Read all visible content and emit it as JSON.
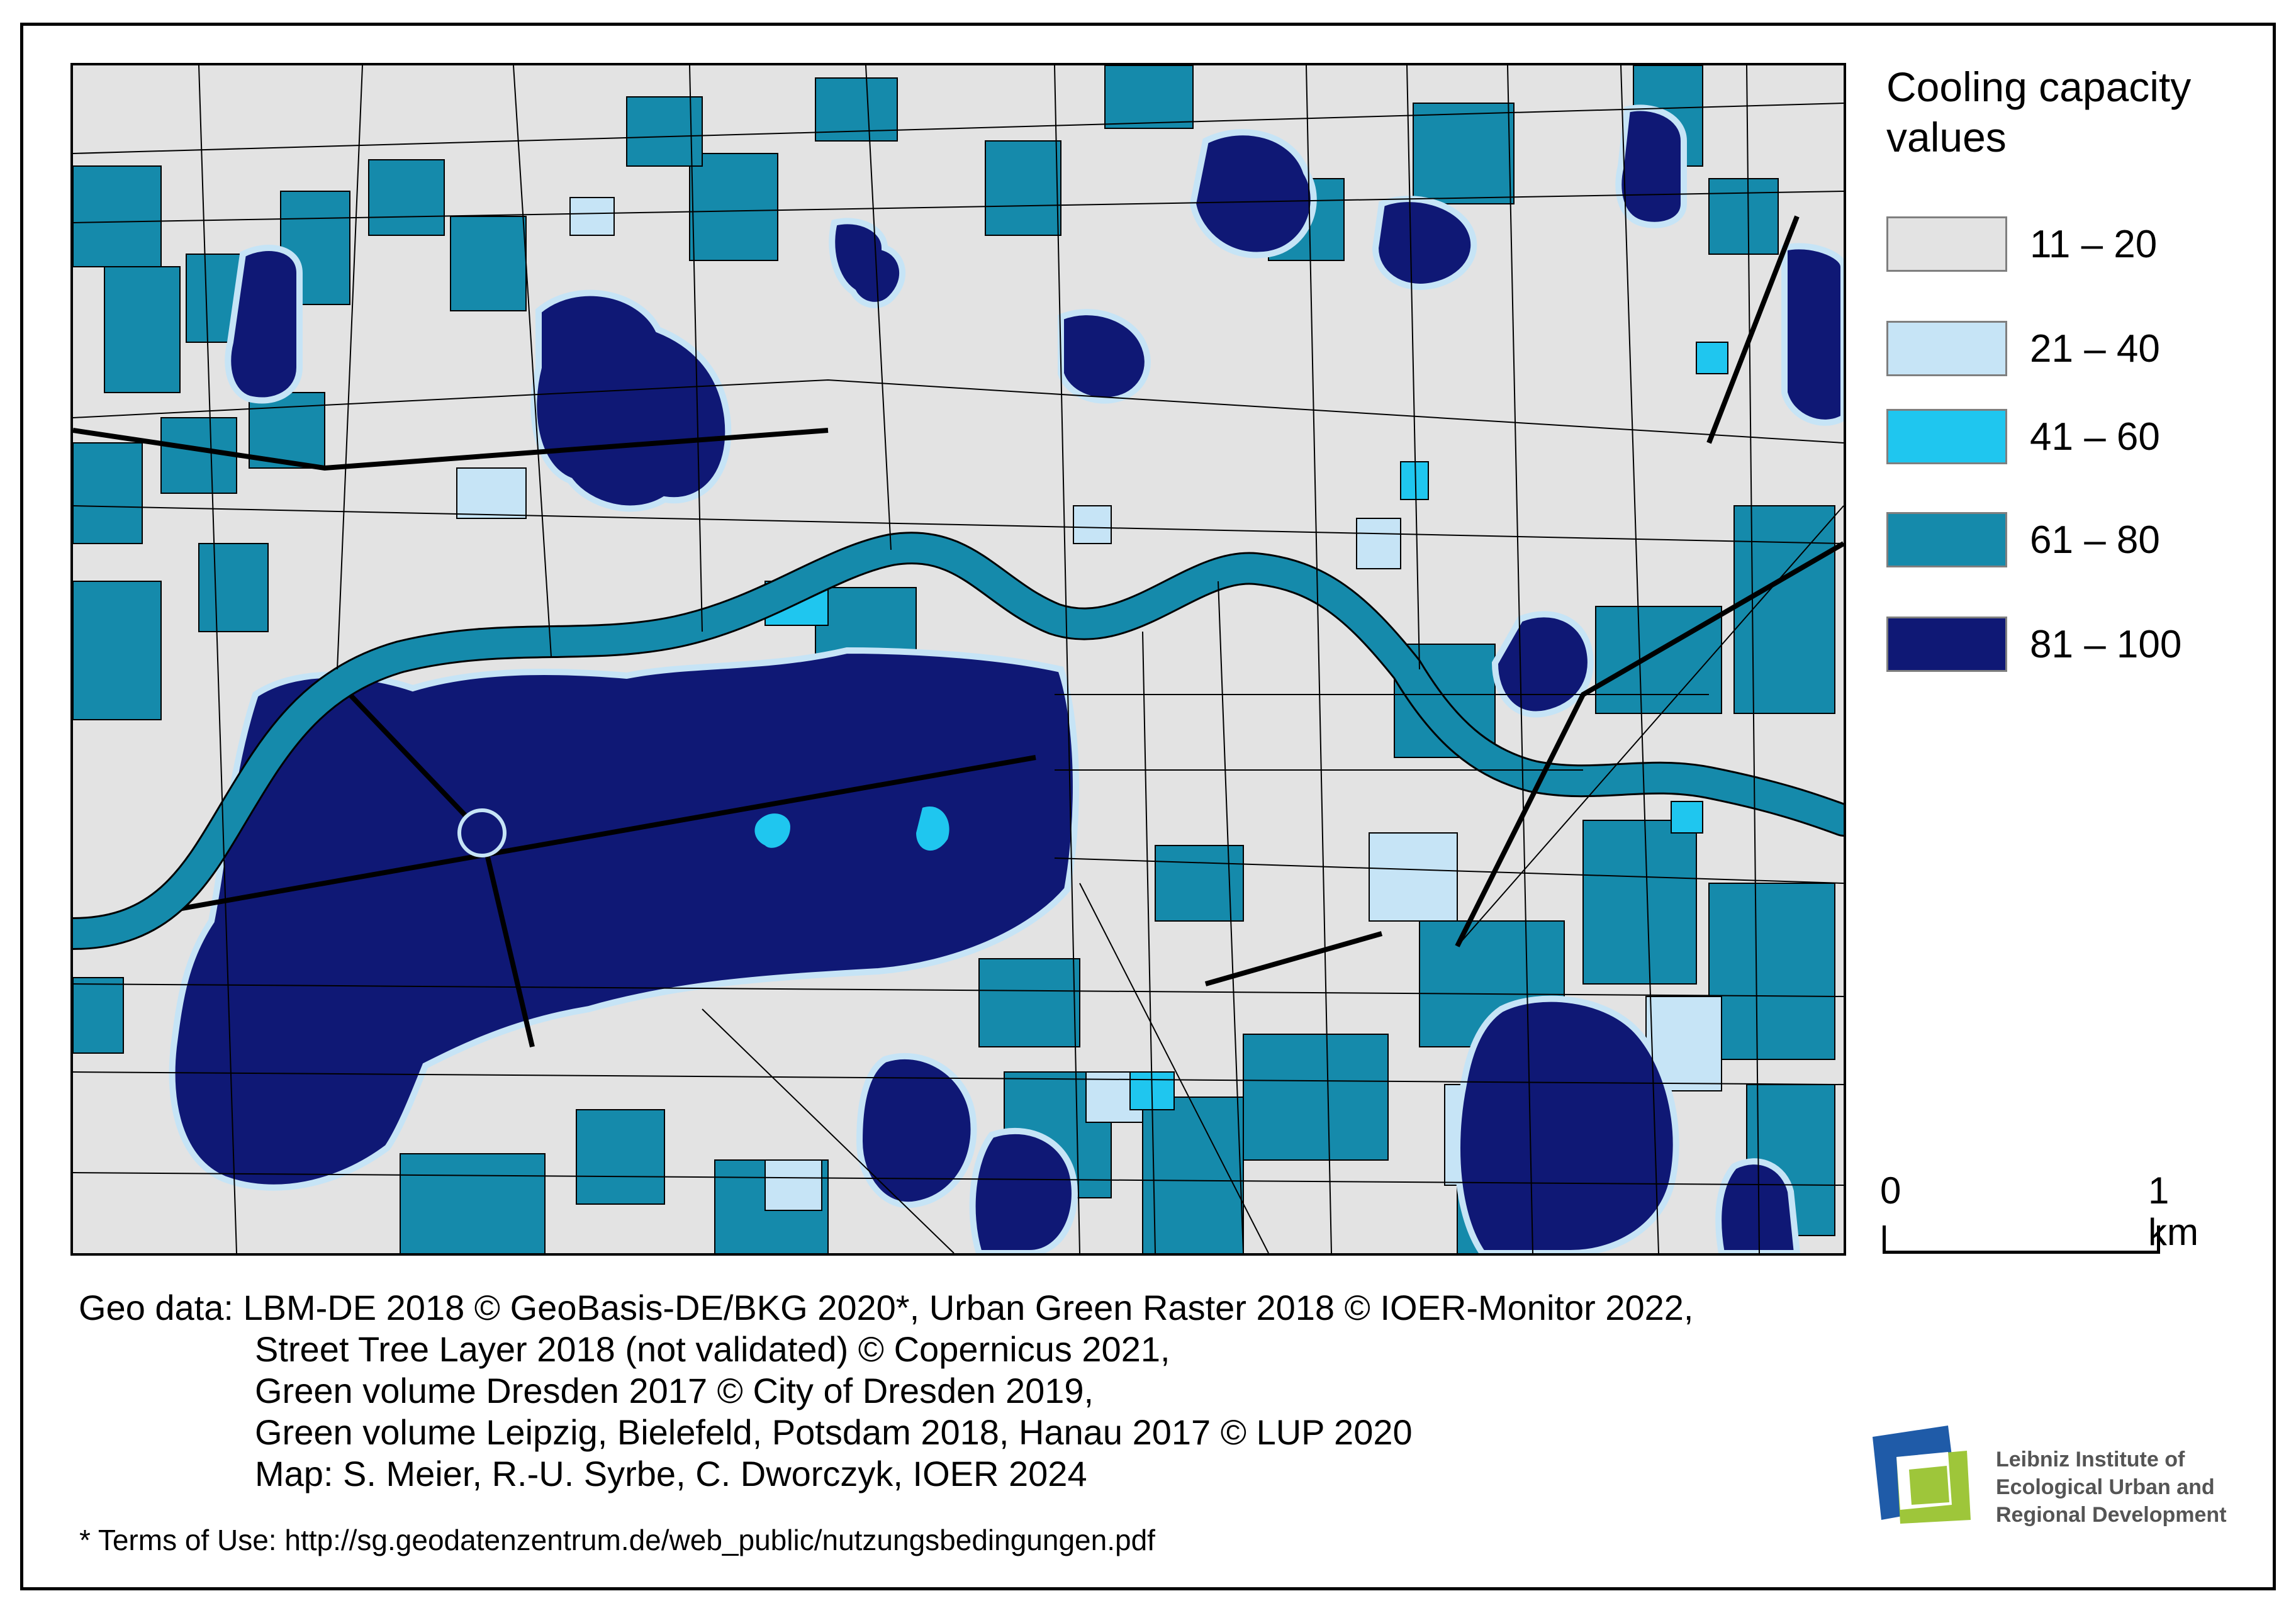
{
  "legend": {
    "title_line1": "Cooling capacity",
    "title_line2": "values",
    "items": [
      {
        "label": "11 – 20",
        "color": "#e3e3e3"
      },
      {
        "label": "21 – 40",
        "color": "#c6e4f6"
      },
      {
        "label": "41 – 60",
        "color": "#1fc6ef"
      },
      {
        "label": "61 – 80",
        "color": "#158aab"
      },
      {
        "label": "81 – 100",
        "color": "#0f1875"
      }
    ]
  },
  "scalebar": {
    "start_label": "0",
    "end_label": "1 km"
  },
  "credits": {
    "line1": "Geo data: LBM-DE 2018 © GeoBasis-DE/BKG 2020*, Urban Green Raster 2018 © IOER-Monitor 2022,",
    "line2": "Street Tree Layer 2018 (not validated) © Copernicus 2021,",
    "line3": "Green volume Dresden 2017  © City of Dresden 2019,",
    "line4": "Green volume Leipzig, Bielefeld, Potsdam 2018, Hanau 2017 © LUP 2020",
    "line5": "Map: S. Meier, R.-U. Syrbe, C. Dworczyk, IOER 2024"
  },
  "terms": "* Terms of Use: http://sg.geodatenzentrum.de/web_public/nutzungsbedingungen.pdf",
  "logo": {
    "line1": "Leibniz Institute of",
    "line2": "Ecological Urban and",
    "line3": "Regional Development"
  },
  "colors": {
    "river": "#158aab",
    "park": "#0f1875",
    "road": "#000000"
  }
}
